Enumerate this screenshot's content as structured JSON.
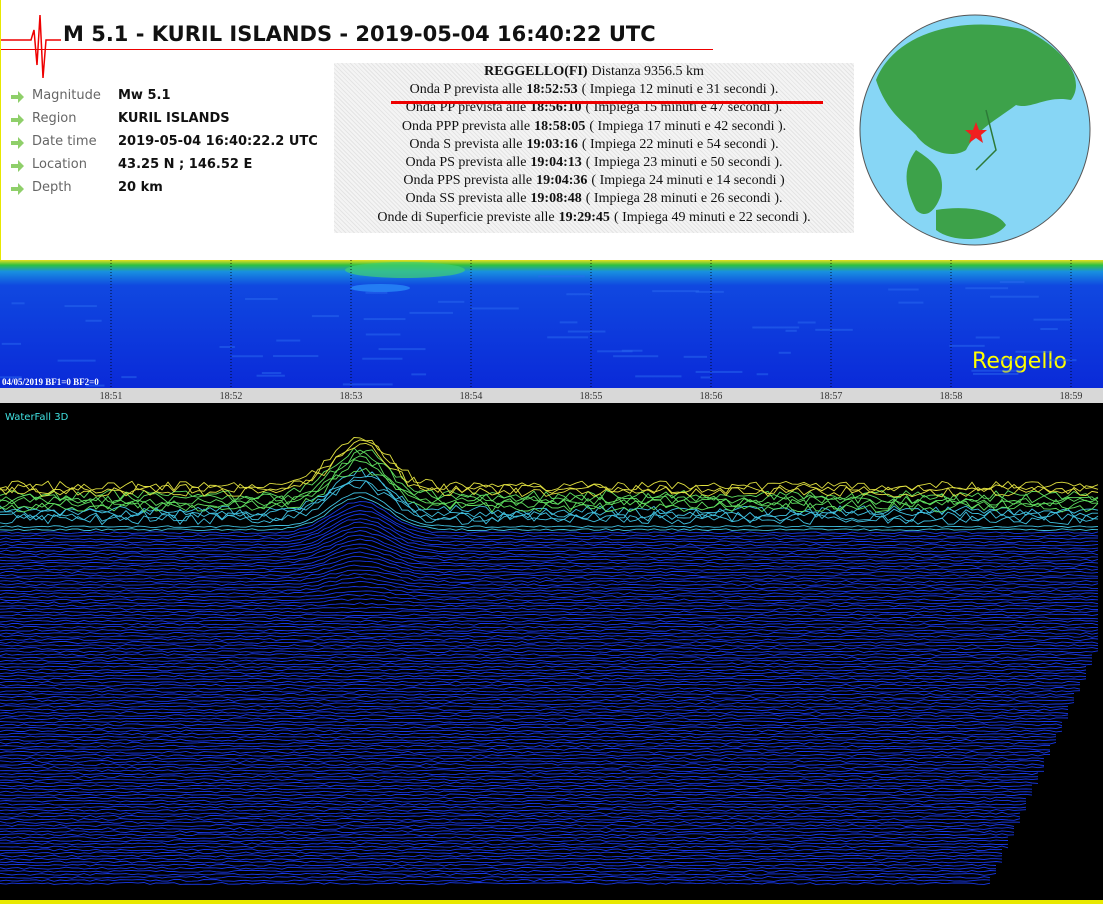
{
  "header": {
    "title": "M 5.1 - KURIL ISLANDS - 2019-05-04 16:40:22 UTC"
  },
  "info": [
    {
      "label": "Magnitude",
      "value": "Mw 5.1"
    },
    {
      "label": "Region",
      "value": "KURIL ISLANDS"
    },
    {
      "label": "Date time",
      "value": "2019-05-04 16:40:22.2 UTC"
    },
    {
      "label": "Location",
      "value": "43.25 N ; 146.52 E"
    },
    {
      "label": "Depth",
      "value": "20 km"
    }
  ],
  "arrivals": {
    "station": "REGGELLO(FI)",
    "distance": "Distanza 9356.5 km",
    "lines": [
      {
        "prefix": "Onda P prevista alle",
        "time": "18:52:53",
        "suffix": "( Impiega 12 minuti e 31 secondi )."
      },
      {
        "prefix": "Onda PP prevista alle",
        "time": "18:56:10",
        "suffix": "( Impiega 15 minuti e 47 secondi )."
      },
      {
        "prefix": "Onda PPP prevista alle",
        "time": "18:58:05",
        "suffix": "( Impiega 17 minuti e 42 secondi )."
      },
      {
        "prefix": "Onda S prevista alle",
        "time": "19:03:16",
        "suffix": "( Impiega 22 minuti e 54 secondi )."
      },
      {
        "prefix": "Onda PS prevista alle",
        "time": "19:04:13",
        "suffix": "( Impiega 23 minuti e 50 secondi )."
      },
      {
        "prefix": "Onda PPS prevista alle",
        "time": "19:04:36",
        "suffix": "( Impiega 24 minuti e 14 secondi )"
      },
      {
        "prefix": "Onda SS prevista alle",
        "time": "19:08:48",
        "suffix": "( Impiega 28 minuti e 26 secondi )."
      },
      {
        "prefix": "Onde di Superficie previste alle",
        "time": "19:29:45",
        "suffix": "( Impiega 49 minuti e 22 secondi )."
      }
    ]
  },
  "spectrogram": {
    "station_label": "Reggello",
    "footer": "04/05/2019 BF1=0 BF2=0",
    "time_ticks": [
      "18:51",
      "18:52",
      "18:53",
      "18:54",
      "18:55",
      "18:56",
      "18:57",
      "18:58",
      "18:59"
    ]
  },
  "waterfall": {
    "label": "WaterFall 3D"
  }
}
